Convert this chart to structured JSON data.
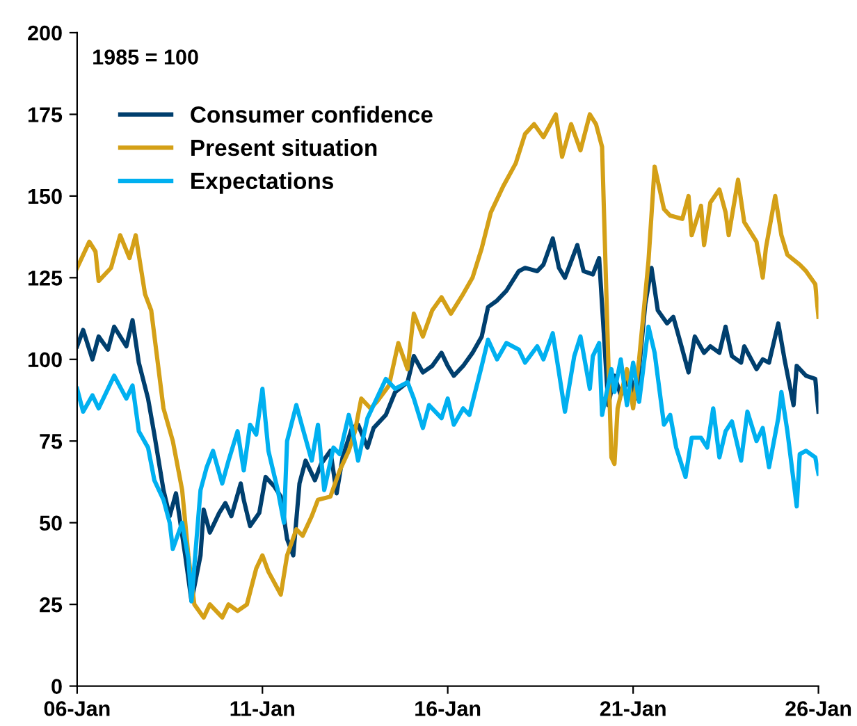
{
  "chart_data": {
    "type": "line",
    "annotations": [
      "1985 = 100"
    ],
    "xlim": [
      "2006-01",
      "2026-01"
    ],
    "xticks": [
      {
        "value": "2006-01",
        "label": "06-Jan"
      },
      {
        "value": "2011-01",
        "label": "11-Jan"
      },
      {
        "value": "2016-01",
        "label": "16-Jan"
      },
      {
        "value": "2021-01",
        "label": "21-Jan"
      },
      {
        "value": "2026-01",
        "label": "26-Jan"
      }
    ],
    "ylim": [
      0,
      200
    ],
    "yticks": [
      0,
      25,
      50,
      75,
      100,
      125,
      150,
      175,
      200
    ],
    "grid": false,
    "legend": "top left",
    "marker": "none",
    "line_style": "solid",
    "series": [
      {
        "name": "Consumer confidence",
        "color": "#003f6e",
        "x": [
          "2006-01",
          "2006-03",
          "2006-06",
          "2006-08",
          "2006-11",
          "2007-01",
          "2007-05",
          "2007-07",
          "2007-09",
          "2007-12",
          "2008-02",
          "2008-05",
          "2008-07",
          "2008-09",
          "2008-12",
          "2009-02",
          "2009-05",
          "2009-06",
          "2009-08",
          "2009-11",
          "2010-01",
          "2010-03",
          "2010-06",
          "2010-07",
          "2010-09",
          "2010-12",
          "2011-02",
          "2011-05",
          "2011-07",
          "2011-09",
          "2011-11",
          "2012-01",
          "2012-03",
          "2012-06",
          "2012-08",
          "2012-11",
          "2013-01",
          "2013-03",
          "2013-06",
          "2013-08",
          "2013-11",
          "2014-01",
          "2014-05",
          "2014-08",
          "2014-12",
          "2015-02",
          "2015-05",
          "2015-08",
          "2015-11",
          "2016-01",
          "2016-03",
          "2016-06",
          "2016-09",
          "2016-12",
          "2017-02",
          "2017-05",
          "2017-08",
          "2017-12",
          "2018-02",
          "2018-06",
          "2018-08",
          "2018-11",
          "2019-01",
          "2019-03",
          "2019-07",
          "2019-09",
          "2019-12",
          "2020-02",
          "2020-05",
          "2020-07",
          "2020-09",
          "2020-12",
          "2021-02",
          "2021-05",
          "2021-07",
          "2021-09",
          "2021-12",
          "2022-02",
          "2022-05",
          "2022-07",
          "2022-09",
          "2022-12",
          "2023-02",
          "2023-05",
          "2023-07",
          "2023-09",
          "2023-12",
          "2024-01",
          "2024-05",
          "2024-07",
          "2024-09",
          "2024-12",
          "2025-02",
          "2025-05",
          "2025-06",
          "2025-09",
          "2025-12",
          "2026-01"
        ],
        "values": [
          104,
          109,
          100,
          107,
          103,
          110,
          104,
          112,
          99,
          88,
          77,
          60,
          52,
          59,
          40,
          26,
          40,
          54,
          47,
          53,
          56,
          52,
          62,
          57,
          49,
          53,
          64,
          61,
          58,
          45,
          40,
          62,
          69,
          63,
          68,
          72,
          59,
          70,
          79,
          80,
          73,
          79,
          83,
          90,
          93,
          101,
          96,
          98,
          102,
          98,
          95,
          98,
          102,
          107,
          116,
          118,
          121,
          127,
          128,
          127,
          129,
          137,
          128,
          125,
          135,
          127,
          126,
          131,
          86,
          95,
          89,
          95,
          88,
          117,
          128,
          115,
          111,
          113,
          103,
          96,
          107,
          102,
          104,
          102,
          110,
          101,
          99,
          104,
          97,
          100,
          99,
          111,
          100,
          86,
          98,
          95,
          94,
          84
        ]
      },
      {
        "name": "Present situation",
        "color": "#d4a017",
        "x": [
          "2006-01",
          "2006-05",
          "2006-07",
          "2006-08",
          "2006-12",
          "2007-03",
          "2007-06",
          "2007-08",
          "2007-11",
          "2008-01",
          "2008-05",
          "2008-08",
          "2008-11",
          "2009-01",
          "2009-03",
          "2009-06",
          "2009-08",
          "2009-12",
          "2010-02",
          "2010-05",
          "2010-08",
          "2010-11",
          "2011-01",
          "2011-03",
          "2011-07",
          "2011-09",
          "2011-12",
          "2012-02",
          "2012-05",
          "2012-07",
          "2012-11",
          "2013-02",
          "2013-05",
          "2013-07",
          "2013-09",
          "2013-12",
          "2014-02",
          "2014-06",
          "2014-09",
          "2014-12",
          "2015-02",
          "2015-05",
          "2015-08",
          "2015-11",
          "2016-02",
          "2016-06",
          "2016-09",
          "2016-12",
          "2017-03",
          "2017-07",
          "2017-11",
          "2018-02",
          "2018-05",
          "2018-08",
          "2018-12",
          "2019-02",
          "2019-05",
          "2019-08",
          "2019-11",
          "2020-01",
          "2020-03",
          "2020-05",
          "2020-06",
          "2020-07",
          "2020-08",
          "2020-11",
          "2021-01",
          "2021-03",
          "2021-06",
          "2021-08",
          "2021-11",
          "2022-01",
          "2022-05",
          "2022-07",
          "2022-08",
          "2022-11",
          "2022-12",
          "2023-02",
          "2023-05",
          "2023-07",
          "2023-08",
          "2023-11",
          "2024-01",
          "2024-05",
          "2024-07",
          "2024-08",
          "2024-11",
          "2025-01",
          "2025-03",
          "2025-07",
          "2025-09",
          "2025-12",
          "2026-01"
        ],
        "values": [
          128,
          136,
          133,
          124,
          128,
          138,
          131,
          138,
          120,
          115,
          85,
          75,
          60,
          40,
          25,
          21,
          25,
          21,
          25,
          23,
          25,
          36,
          40,
          35,
          28,
          40,
          48,
          46,
          52,
          57,
          58,
          66,
          72,
          78,
          88,
          85,
          87,
          92,
          105,
          97,
          114,
          107,
          115,
          119,
          114,
          120,
          125,
          134,
          145,
          153,
          160,
          169,
          172,
          168,
          175,
          162,
          172,
          164,
          175,
          172,
          165,
          100,
          70,
          68,
          85,
          97,
          85,
          100,
          130,
          159,
          146,
          144,
          143,
          150,
          138,
          147,
          135,
          148,
          152,
          145,
          138,
          155,
          142,
          136,
          125,
          134,
          150,
          138,
          132,
          129,
          127,
          123,
          113
        ]
      },
      {
        "name": "Expectations",
        "color": "#00b0f0",
        "x": [
          "2006-01",
          "2006-03",
          "2006-06",
          "2006-08",
          "2006-11",
          "2007-01",
          "2007-05",
          "2007-07",
          "2007-09",
          "2007-12",
          "2008-02",
          "2008-05",
          "2008-07",
          "2008-08",
          "2008-11",
          "2009-01",
          "2009-02",
          "2009-05",
          "2009-07",
          "2009-09",
          "2009-12",
          "2010-02",
          "2010-05",
          "2010-07",
          "2010-09",
          "2010-11",
          "2011-01",
          "2011-03",
          "2011-06",
          "2011-08",
          "2011-09",
          "2011-12",
          "2012-02",
          "2012-05",
          "2012-07",
          "2012-09",
          "2012-12",
          "2013-02",
          "2013-05",
          "2013-06",
          "2013-08",
          "2013-11",
          "2014-01",
          "2014-05",
          "2014-08",
          "2014-12",
          "2015-02",
          "2015-05",
          "2015-07",
          "2015-11",
          "2016-01",
          "2016-03",
          "2016-06",
          "2016-08",
          "2016-12",
          "2017-02",
          "2017-05",
          "2017-08",
          "2017-12",
          "2018-02",
          "2018-06",
          "2018-08",
          "2018-11",
          "2019-01",
          "2019-03",
          "2019-06",
          "2019-08",
          "2019-11",
          "2019-12",
          "2020-02",
          "2020-03",
          "2020-06",
          "2020-07",
          "2020-09",
          "2020-11",
          "2021-01",
          "2021-03",
          "2021-06",
          "2021-08",
          "2021-11",
          "2022-01",
          "2022-03",
          "2022-06",
          "2022-08",
          "2022-11",
          "2023-01",
          "2023-03",
          "2023-05",
          "2023-07",
          "2023-09",
          "2023-12",
          "2024-02",
          "2024-05",
          "2024-07",
          "2024-09",
          "2024-12",
          "2025-01",
          "2025-03",
          "2025-06",
          "2025-07",
          "2025-09",
          "2025-12",
          "2026-01"
        ],
        "values": [
          91,
          84,
          89,
          85,
          91,
          95,
          88,
          92,
          78,
          73,
          63,
          57,
          50,
          42,
          50,
          39,
          26,
          60,
          67,
          72,
          62,
          69,
          78,
          66,
          80,
          77,
          91,
          72,
          60,
          50,
          75,
          86,
          79,
          69,
          80,
          60,
          73,
          71,
          83,
          79,
          69,
          82,
          86,
          94,
          91,
          93,
          88,
          79,
          86,
          82,
          88,
          80,
          85,
          83,
          98,
          106,
          100,
          105,
          103,
          99,
          104,
          100,
          108,
          96,
          84,
          101,
          107,
          91,
          101,
          105,
          83,
          97,
          90,
          100,
          86,
          99,
          87,
          110,
          102,
          80,
          83,
          73,
          64,
          76,
          76,
          73,
          85,
          70,
          78,
          81,
          69,
          84,
          75,
          79,
          67,
          82,
          90,
          78,
          55,
          71,
          72,
          70,
          65
        ]
      }
    ]
  }
}
